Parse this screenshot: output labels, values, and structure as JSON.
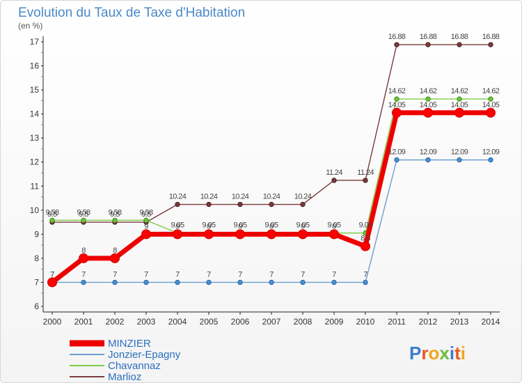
{
  "chart_data": {
    "type": "line",
    "title": "Evolution du Taux de Taxe d'Habitation",
    "subtitle": "(en %)",
    "xlabel": "",
    "ylabel": "",
    "ylim": [
      6,
      17
    ],
    "yticks": [
      6,
      7,
      8,
      9,
      10,
      11,
      12,
      13,
      14,
      15,
      16,
      17
    ],
    "grid": false,
    "legend_position": "bottom-left",
    "x": [
      2000,
      2001,
      2002,
      2003,
      2004,
      2005,
      2006,
      2007,
      2008,
      2009,
      2010,
      2011,
      2012,
      2013,
      2014
    ],
    "series": [
      {
        "name": "Marlioz",
        "color": "#7a3b3b",
        "values": [
          9.5,
          9.5,
          9.5,
          9.5,
          10.24,
          10.24,
          10.24,
          10.24,
          10.24,
          11.24,
          11.24,
          16.88,
          16.88,
          16.88,
          16.88
        ],
        "labels": [
          "9.5",
          "9.5",
          "9.5",
          "9.5",
          "10.24",
          "10.24",
          "10.24",
          "10.24",
          "10.24",
          "11.24",
          "11.24",
          "16.88",
          "16.88",
          "16.88",
          "16.88"
        ]
      },
      {
        "name": "Chavannaz",
        "color": "#7fcc4c",
        "values": [
          9.58,
          9.58,
          9.58,
          9.58,
          9.05,
          9.05,
          9.05,
          9.05,
          9.05,
          9.05,
          9.05,
          14.62,
          14.62,
          14.62,
          14.62
        ],
        "labels": [
          "9.58",
          "9.58",
          "9.58",
          "9.58",
          "9.05",
          "9.05",
          "9.05",
          "9.05",
          "9.05",
          "9.05",
          "9.05",
          "14.62",
          "14.62",
          "14.62",
          "14.62"
        ]
      },
      {
        "name": "Jonzier-Epagny",
        "color": "#6a9fd0",
        "values": [
          7,
          7,
          7,
          7,
          7,
          7,
          7,
          7,
          7,
          7,
          7,
          12.09,
          12.09,
          12.09,
          12.09
        ],
        "labels": [
          "7",
          "7",
          "7",
          "7",
          "7",
          "7",
          "7",
          "7",
          "7",
          "7",
          "7",
          "12.09",
          "12.09",
          "12.09",
          "12.09"
        ]
      },
      {
        "name": "MINZIER",
        "color": "#ee0000",
        "values": [
          7,
          8,
          8,
          9,
          9,
          9,
          9,
          9,
          9,
          9,
          8.5,
          14.05,
          14.05,
          14.05,
          14.05
        ],
        "labels": [
          "7",
          "8",
          "8",
          "9",
          "9",
          "9",
          "9",
          "9",
          "9",
          "9",
          "8.5",
          "14.05",
          "14.05",
          "14.05",
          "14.05"
        ]
      }
    ],
    "legend_entries": [
      "MINZIER",
      "Jonzier-Epagny",
      "Chavannaz",
      "Marlioz"
    ]
  },
  "branding": {
    "logo_text": "Proxiti"
  }
}
